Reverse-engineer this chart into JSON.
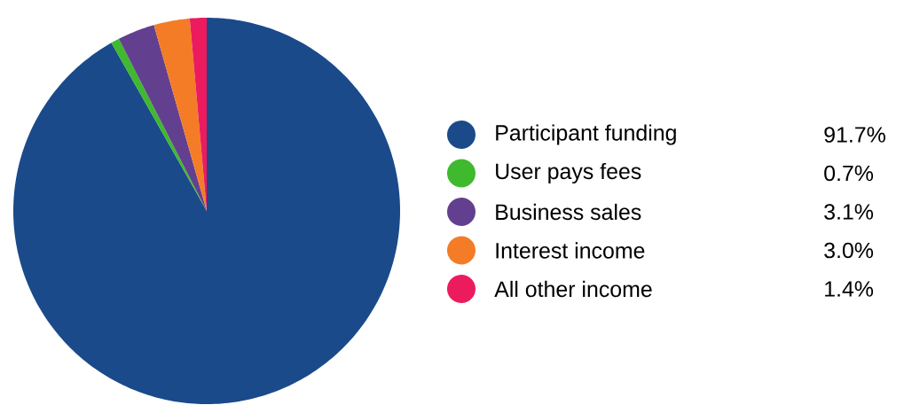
{
  "chart_data": {
    "type": "pie",
    "categories": [
      "Participant funding",
      "User pays fees",
      "Business sales",
      "Interest income",
      "All other income"
    ],
    "values": [
      91.7,
      0.7,
      3.1,
      3.0,
      1.4
    ],
    "value_labels": [
      "91.7%",
      "0.7%",
      "3.1%",
      "3.0%",
      "1.4%"
    ],
    "colors": [
      "#1a4a8a",
      "#3fb92d",
      "#633f8f",
      "#f47c26",
      "#ec1b5e"
    ],
    "legend": "right"
  }
}
